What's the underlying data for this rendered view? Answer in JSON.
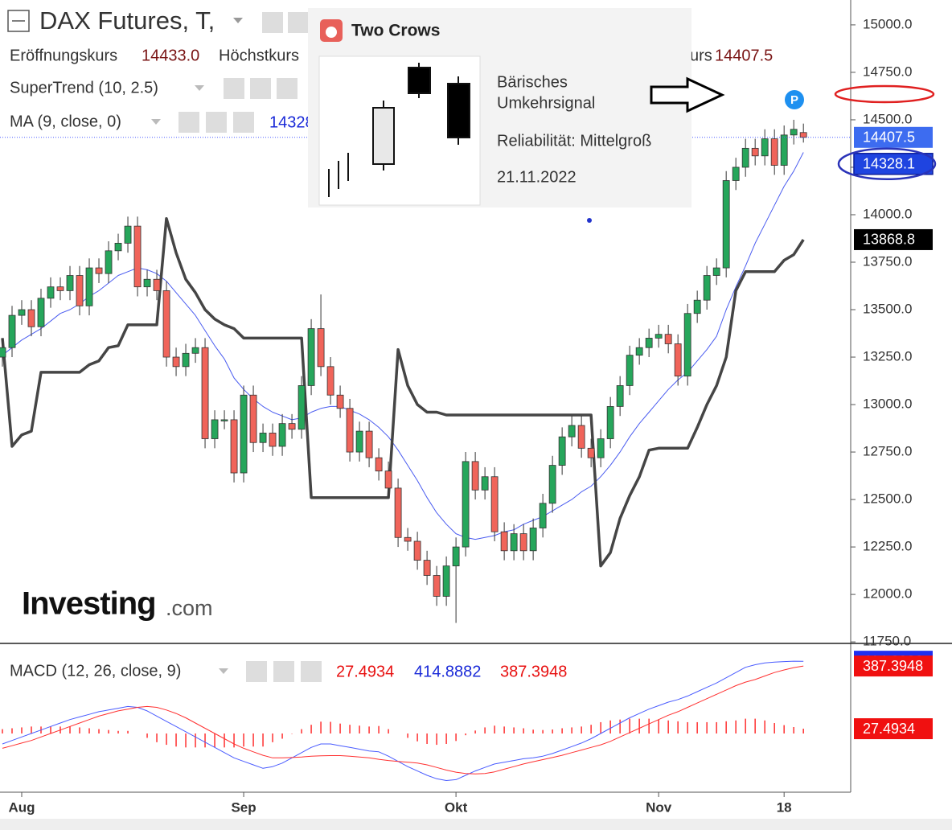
{
  "header": {
    "open": "Eröffnungskurs",
    "high": "Höchstkurs",
    "close": "urs"
  },
  "popup": {
    "title": "Two Crows",
    "line1": "Bärisches",
    "line2": "Umkehrsignal",
    "reliability": "Reliabilität: Mittelgroß",
    "date": "21.11.2022"
  },
  "logo": {
    "name": "Investing",
    "suffix": ".com"
  },
  "badge": "P",
  "chart_data": [
    {
      "type": "candlestick",
      "title": "DAX Futures, T,",
      "xlim": [
        -0.25,
        87.9
      ],
      "ylim": [
        11742,
        15131
      ],
      "yticks": [
        {
          "value": 11750,
          "label": "11750.0"
        },
        {
          "value": 12000,
          "label": "12000.0"
        },
        {
          "value": 12250,
          "label": "12250.0"
        },
        {
          "value": 12500,
          "label": "12500.0"
        },
        {
          "value": 12750,
          "label": "12750.0"
        },
        {
          "value": 13000,
          "label": "13000.0"
        },
        {
          "value": 13250,
          "label": "13250.0"
        },
        {
          "value": 13500,
          "label": "13500.0"
        },
        {
          "value": 13750,
          "label": "13750.0"
        },
        {
          "value": 14000,
          "label": "14000.0"
        },
        {
          "value": 14250,
          "label": "14250.0"
        },
        {
          "value": 14500,
          "label": "14500.0"
        },
        {
          "value": 14750,
          "label": "14750.0"
        },
        {
          "value": 15000,
          "label": "15000.0"
        }
      ],
      "xticks": [
        {
          "value": 2,
          "label": "Aug"
        },
        {
          "value": 25,
          "label": "Sep"
        },
        {
          "value": 47,
          "label": "Okt"
        },
        {
          "value": 68,
          "label": "Nov"
        },
        {
          "value": 81,
          "label": "18"
        }
      ],
      "up_color": "#26a65b",
      "down_color": "#f0645a",
      "last_open_label": "14433.0",
      "open": [
        13250,
        13300,
        13470,
        13500,
        13410,
        13560,
        13620,
        13600,
        13680,
        13520,
        13720,
        13690,
        13810,
        13850,
        13940,
        13620,
        13660,
        13600,
        13250,
        13200,
        13270,
        13300,
        12820,
        12920,
        12920,
        12640,
        13050,
        12800,
        12850,
        12780,
        12900,
        12870,
        13100,
        13400,
        13200,
        13050,
        12980,
        12750,
        12860,
        12720,
        12650,
        12560,
        12300,
        12280,
        12180,
        12100,
        11990,
        12150,
        12250,
        12700,
        12550,
        12620,
        12330,
        12230,
        12320,
        12230,
        12350,
        12480,
        12680,
        12830,
        12890,
        12770,
        12720,
        12820,
        12990,
        13100,
        13260,
        13300,
        13350,
        13370,
        13320,
        13150,
        13480,
        13550,
        13680,
        13720,
        14180,
        14250,
        14350,
        14310,
        14400,
        14260,
        14420,
        14433
      ],
      "high": [
        13350,
        13520,
        13550,
        13550,
        13610,
        13670,
        13670,
        13730,
        13730,
        13770,
        13770,
        13860,
        13900,
        13990,
        13990,
        13710,
        13710,
        13650,
        13300,
        13320,
        13350,
        13350,
        12970,
        12970,
        12970,
        13100,
        13100,
        12900,
        12900,
        12950,
        12950,
        13150,
        13450,
        13580,
        13250,
        13100,
        13030,
        12910,
        12910,
        12770,
        12700,
        12610,
        12350,
        12330,
        12230,
        12150,
        12200,
        12300,
        12750,
        12750,
        12670,
        12670,
        12380,
        12370,
        12370,
        12400,
        12530,
        12730,
        12880,
        12940,
        12940,
        12820,
        12870,
        13040,
        13150,
        13310,
        13350,
        13400,
        13420,
        13420,
        13370,
        13530,
        13600,
        13730,
        13770,
        14230,
        14300,
        14400,
        14400,
        14450,
        14450,
        14470,
        14500,
        14480
      ],
      "low": [
        13200,
        13250,
        13420,
        13360,
        13360,
        13510,
        13550,
        13550,
        13470,
        13470,
        13640,
        13640,
        13760,
        13800,
        13570,
        13570,
        13550,
        13200,
        13150,
        13150,
        13220,
        12770,
        12770,
        12870,
        12590,
        12590,
        12750,
        12750,
        12730,
        12730,
        12820,
        12820,
        13050,
        13150,
        13000,
        12930,
        12700,
        12700,
        12670,
        12600,
        12510,
        12250,
        12230,
        12130,
        12050,
        11940,
        11940,
        11850,
        12200,
        12500,
        12500,
        12280,
        12180,
        12180,
        12180,
        12180,
        12300,
        12430,
        12630,
        12780,
        12720,
        12670,
        12670,
        12770,
        12940,
        13050,
        13210,
        13250,
        13300,
        13270,
        13100,
        13100,
        13430,
        13500,
        13630,
        13670,
        14130,
        14200,
        14260,
        14260,
        14210,
        14210,
        14370,
        14380
      ],
      "close": [
        13300,
        13470,
        13500,
        13410,
        13560,
        13620,
        13600,
        13680,
        13520,
        13720,
        13690,
        13810,
        13850,
        13940,
        13620,
        13660,
        13600,
        13250,
        13200,
        13270,
        13300,
        12820,
        12920,
        12920,
        12640,
        13050,
        12800,
        12850,
        12780,
        12900,
        12870,
        13100,
        13400,
        13200,
        13050,
        12980,
        12750,
        12860,
        12720,
        12650,
        12560,
        12300,
        12280,
        12180,
        12100,
        11990,
        12150,
        12250,
        12700,
        12550,
        12620,
        12330,
        12230,
        12320,
        12230,
        12350,
        12480,
        12680,
        12830,
        12890,
        12770,
        12720,
        12820,
        12990,
        13100,
        13260,
        13300,
        13350,
        13370,
        13320,
        13150,
        13480,
        13550,
        13680,
        13720,
        14180,
        14250,
        14350,
        14310,
        14400,
        14260,
        14420,
        14450,
        14407.5
      ],
      "series": [
        {
          "name": "SuperTrend (10, 2.5)",
          "color": "#454545",
          "values": [
            13350,
            12780,
            12840,
            12860,
            13170,
            13170,
            13170,
            13170,
            13170,
            13210,
            13230,
            13300,
            13310,
            13420,
            13420,
            13420,
            13420,
            13980,
            13800,
            13660,
            13590,
            13500,
            13450,
            13420,
            13400,
            13350,
            13350,
            13350,
            13350,
            13350,
            13350,
            13350,
            12510,
            12510,
            12510,
            12510,
            12510,
            12510,
            12510,
            12510,
            12510,
            13290,
            13100,
            13000,
            12960,
            12960,
            12945,
            12945,
            12945,
            12945,
            12945,
            12945,
            12945,
            12945,
            12945,
            12945,
            12945,
            12945,
            12945,
            12945,
            12945,
            12945,
            12150,
            12220,
            12400,
            12520,
            12620,
            12760,
            12770,
            12770,
            12770,
            12770,
            12880,
            13000,
            13100,
            13250,
            13600,
            13700,
            13700,
            13700,
            13700,
            13760,
            13790,
            13868.8
          ]
        },
        {
          "name": "MA (9, close, 0)",
          "color": "#4a5cf0",
          "values": [
            13260,
            13300,
            13340,
            13370,
            13400,
            13440,
            13480,
            13500,
            13530,
            13570,
            13600,
            13640,
            13680,
            13700,
            13720,
            13710,
            13690,
            13650,
            13590,
            13530,
            13470,
            13390,
            13310,
            13240,
            13140,
            13080,
            13030,
            12990,
            12960,
            12940,
            12920,
            12930,
            12960,
            12980,
            12990,
            12990,
            12970,
            12950,
            12920,
            12880,
            12830,
            12760,
            12680,
            12600,
            12510,
            12430,
            12370,
            12320,
            12300,
            12290,
            12300,
            12310,
            12330,
            12340,
            12370,
            12390,
            12410,
            12440,
            12470,
            12500,
            12540,
            12570,
            12620,
            12680,
            12750,
            12830,
            12900,
            12960,
            13020,
            13080,
            13130,
            13170,
            13230,
            13290,
            13360,
            13500,
            13620,
            13730,
            13850,
            13950,
            14050,
            14150,
            14230,
            14328.1
          ]
        }
      ]
    },
    {
      "type": "macd",
      "title": "MACD (12, 26, close, 9)",
      "ylim": [
        -337,
        471
      ],
      "series": [
        {
          "color": "#4a5cff",
          "values": [
            -60,
            -40,
            -20,
            0,
            20,
            40,
            60,
            80,
            95,
            110,
            125,
            135,
            145,
            155,
            150,
            130,
            100,
            70,
            40,
            10,
            -20,
            -50,
            -80,
            -110,
            -140,
            -160,
            -180,
            -200,
            -190,
            -170,
            -140,
            -110,
            -80,
            -60,
            -60,
            -70,
            -80,
            -90,
            -100,
            -105,
            -130,
            -160,
            -190,
            -215,
            -240,
            -260,
            -270,
            -265,
            -240,
            -215,
            -195,
            -175,
            -165,
            -155,
            -145,
            -140,
            -130,
            -115,
            -95,
            -75,
            -55,
            -30,
            0,
            30,
            60,
            90,
            115,
            140,
            160,
            180,
            195,
            215,
            240,
            265,
            290,
            320,
            350,
            380,
            395,
            405,
            410,
            413,
            415,
            414.8882
          ]
        },
        {
          "color": "#ff3030",
          "values": [
            -85,
            -70,
            -55,
            -40,
            -20,
            0,
            20,
            40,
            60,
            80,
            100,
            115,
            130,
            140,
            150,
            155,
            150,
            135,
            115,
            90,
            60,
            30,
            0,
            -30,
            -60,
            -85,
            -105,
            -125,
            -140,
            -140,
            -138,
            -135,
            -130,
            -128,
            -127,
            -127,
            -130,
            -135,
            -140,
            -148,
            -155,
            -160,
            -165,
            -170,
            -180,
            -195,
            -210,
            -222,
            -230,
            -232,
            -230,
            -220,
            -205,
            -190,
            -175,
            -162,
            -150,
            -138,
            -125,
            -110,
            -95,
            -80,
            -65,
            -45,
            -20,
            5,
            30,
            55,
            80,
            105,
            125,
            150,
            175,
            200,
            225,
            250,
            275,
            295,
            310,
            330,
            350,
            365,
            378,
            387.3948
          ]
        }
      ],
      "histogram": {
        "color": "#ff3030",
        "values": [
          25,
          30,
          35,
          40,
          40,
          40,
          40,
          40,
          35,
          30,
          25,
          20,
          15,
          15,
          0,
          -25,
          -50,
          -65,
          -75,
          -80,
          -80,
          -80,
          -80,
          -80,
          -80,
          -75,
          -75,
          -75,
          -50,
          -30,
          -2,
          25,
          50,
          68,
          67,
          57,
          50,
          45,
          40,
          43,
          25,
          0,
          -25,
          -45,
          -60,
          -65,
          -60,
          -43,
          -10,
          17,
          35,
          45,
          40,
          35,
          30,
          22,
          20,
          23,
          30,
          35,
          40,
          50,
          65,
          75,
          80,
          85,
          85,
          85,
          80,
          75,
          70,
          65,
          65,
          65,
          65,
          70,
          75,
          85,
          85,
          75,
          60,
          48,
          37,
          27.4934
        ]
      }
    }
  ]
}
